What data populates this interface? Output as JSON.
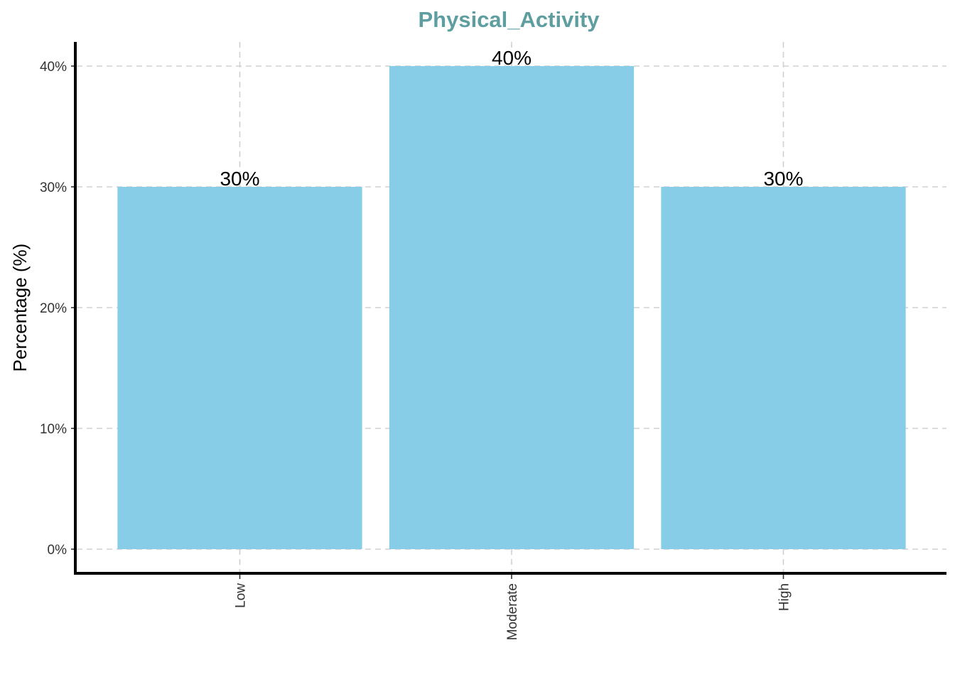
{
  "chart_data": {
    "type": "bar",
    "title": "Physical_Activity",
    "xlabel": "",
    "ylabel": "Percentage (%)",
    "categories": [
      "Low",
      "Moderate",
      "High"
    ],
    "values": [
      30,
      40,
      30
    ],
    "value_labels": [
      "30%",
      "40%",
      "30%"
    ],
    "yticks": [
      0,
      10,
      20,
      30,
      40
    ],
    "ytick_labels": [
      "0%",
      "10%",
      "20%",
      "30%",
      "40%"
    ],
    "ylim": [
      -2,
      42
    ],
    "grid": true,
    "x_tick_label_rotation": "vertical",
    "colors": {
      "bar": "#87CDE8",
      "title": "#5F9EA0",
      "axis": "#000000",
      "grid": "#d0d0d0"
    }
  }
}
